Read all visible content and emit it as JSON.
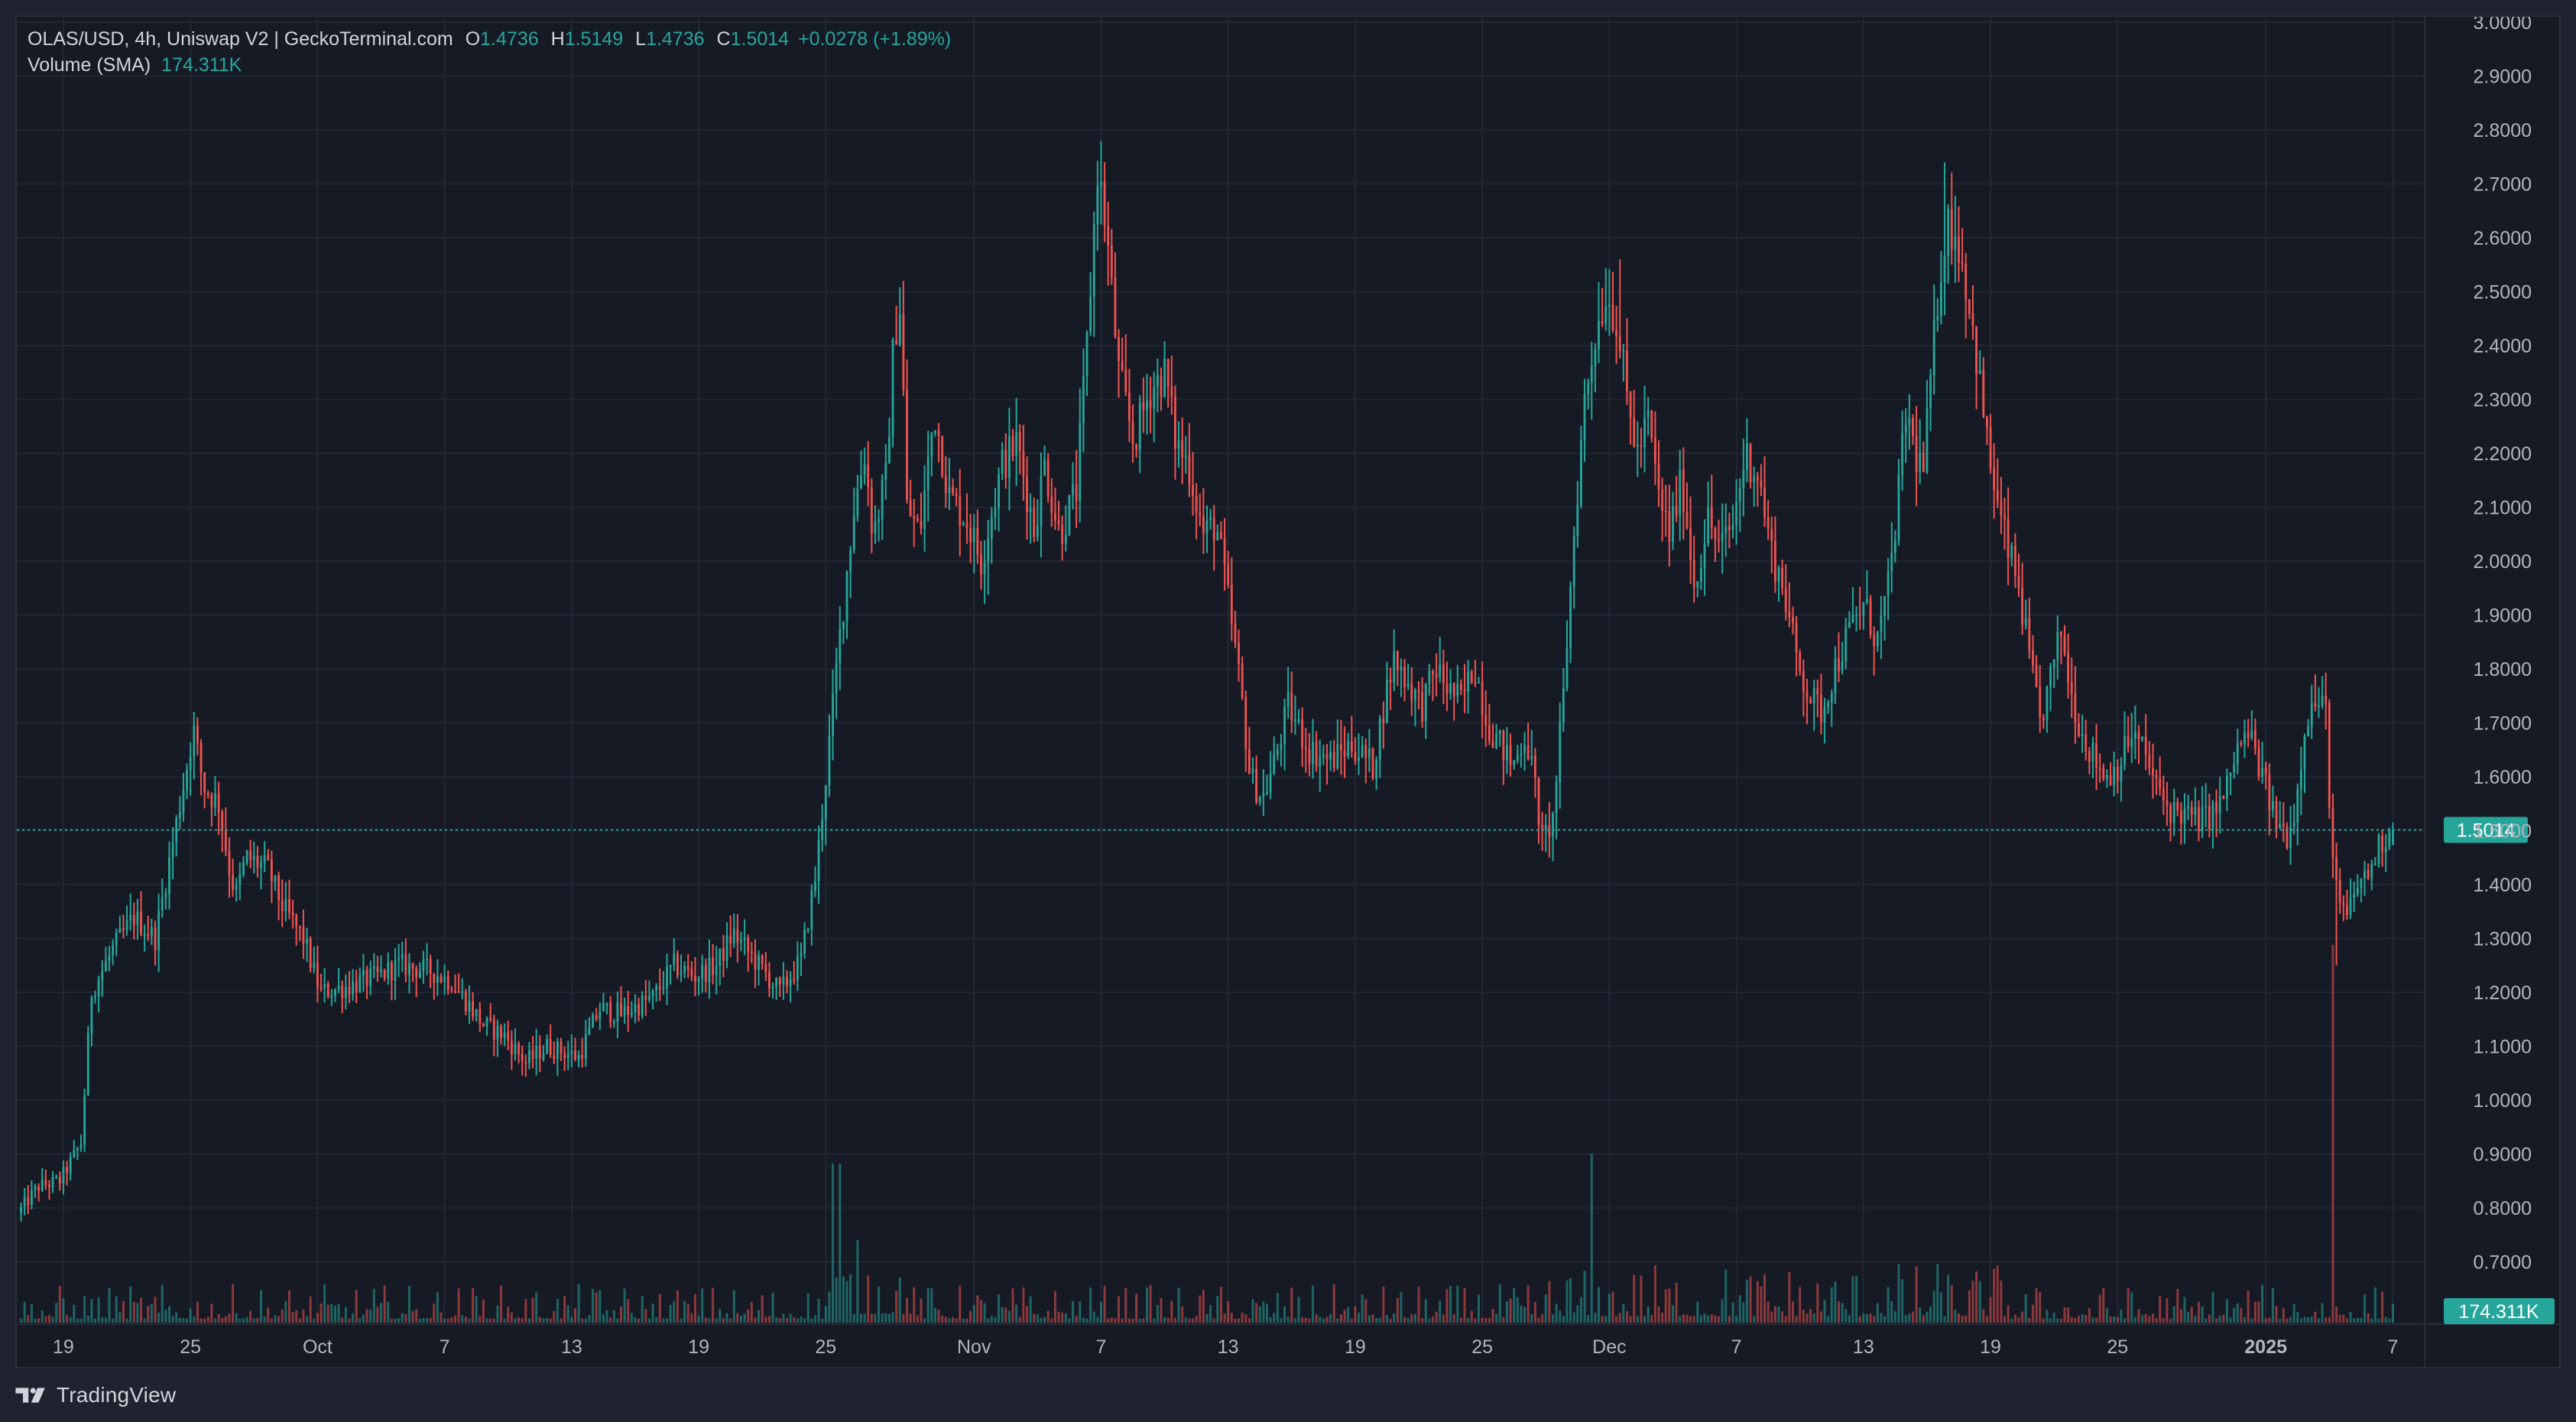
{
  "header": {
    "title": "OLAS/USD, 4h, Uniswap V2 | GeckoTerminal.com",
    "o_label": "O",
    "o_value": "1.4736",
    "h_label": "H",
    "h_value": "1.5149",
    "l_label": "L",
    "l_value": "1.4736",
    "c_label": "C",
    "c_value": "1.5014",
    "change": "+0.0278 (+1.89%)",
    "volume_label": "Volume (SMA)",
    "volume_value": "174.311K"
  },
  "footer": {
    "brand": "TradingView"
  },
  "colors": {
    "background": "#161a25",
    "grid": "#232734",
    "up": "#26a69a",
    "down": "#ef5350",
    "text": "#d1d4dc",
    "axis_text": "#b2b5be"
  },
  "chart_data": {
    "type": "candlestick",
    "symbol": "OLAS/USD",
    "interval": "4h",
    "title": "OLAS/USD, 4h, Uniswap V2 | GeckoTerminal.com",
    "y_ticks": [
      "3.0000",
      "2.9000",
      "2.8000",
      "2.7000",
      "2.6000",
      "2.5000",
      "2.4000",
      "2.3000",
      "2.2000",
      "2.1000",
      "2.0000",
      "1.9000",
      "1.8000",
      "1.7000",
      "1.6000",
      "1.5000",
      "1.4000",
      "1.3000",
      "1.2000",
      "1.1000",
      "1.0000",
      "0.9000",
      "0.8000",
      "0.7000"
    ],
    "ylim": [
      0.65,
      3.02
    ],
    "x_ticks": [
      {
        "label": "19",
        "day": 0,
        "bold": false
      },
      {
        "label": "25",
        "day": 6,
        "bold": false
      },
      {
        "label": "Oct",
        "day": 12,
        "bold": false
      },
      {
        "label": "7",
        "day": 18,
        "bold": false
      },
      {
        "label": "13",
        "day": 24,
        "bold": false
      },
      {
        "label": "19",
        "day": 30,
        "bold": false
      },
      {
        "label": "25",
        "day": 36,
        "bold": false
      },
      {
        "label": "Nov",
        "day": 43,
        "bold": false
      },
      {
        "label": "7",
        "day": 49,
        "bold": false
      },
      {
        "label": "13",
        "day": 55,
        "bold": false
      },
      {
        "label": "19",
        "day": 61,
        "bold": false
      },
      {
        "label": "25",
        "day": 67,
        "bold": false
      },
      {
        "label": "Dec",
        "day": 73,
        "bold": false
      },
      {
        "label": "7",
        "day": 79,
        "bold": false
      },
      {
        "label": "13",
        "day": 85,
        "bold": false
      },
      {
        "label": "19",
        "day": 91,
        "bold": false
      },
      {
        "label": "25",
        "day": 97,
        "bold": false
      },
      {
        "label": "2025",
        "day": 104,
        "bold": true
      },
      {
        "label": "7",
        "day": 110,
        "bold": false
      }
    ],
    "x_domain_days": [
      -2.2,
      111.5
    ],
    "last_price": "1.5014",
    "last_volume": "174.311K",
    "grid": true,
    "price_path_anchors": [
      {
        "day": -2.0,
        "price": 0.79
      },
      {
        "day": -1.0,
        "price": 0.84
      },
      {
        "day": 0.0,
        "price": 0.85
      },
      {
        "day": 1.0,
        "price": 0.92
      },
      {
        "day": 1.5,
        "price": 1.2
      },
      {
        "day": 2.5,
        "price": 1.28
      },
      {
        "day": 3.5,
        "price": 1.34
      },
      {
        "day": 4.5,
        "price": 1.3
      },
      {
        "day": 5.2,
        "price": 1.45
      },
      {
        "day": 6.0,
        "price": 1.62
      },
      {
        "day": 6.3,
        "price": 1.69
      },
      {
        "day": 6.8,
        "price": 1.58
      },
      {
        "day": 7.5,
        "price": 1.55
      },
      {
        "day": 8.0,
        "price": 1.43
      },
      {
        "day": 8.3,
        "price": 1.38
      },
      {
        "day": 8.8,
        "price": 1.45
      },
      {
        "day": 9.8,
        "price": 1.43
      },
      {
        "day": 10.5,
        "price": 1.36
      },
      {
        "day": 11.5,
        "price": 1.3
      },
      {
        "day": 12.3,
        "price": 1.2
      },
      {
        "day": 13.5,
        "price": 1.21
      },
      {
        "day": 15.0,
        "price": 1.23
      },
      {
        "day": 16.0,
        "price": 1.25
      },
      {
        "day": 17.5,
        "price": 1.24
      },
      {
        "day": 18.5,
        "price": 1.22
      },
      {
        "day": 20.0,
        "price": 1.14
      },
      {
        "day": 21.0,
        "price": 1.12
      },
      {
        "day": 22.0,
        "price": 1.07
      },
      {
        "day": 23.0,
        "price": 1.1
      },
      {
        "day": 24.5,
        "price": 1.08
      },
      {
        "day": 25.5,
        "price": 1.17
      },
      {
        "day": 26.5,
        "price": 1.16
      },
      {
        "day": 28.0,
        "price": 1.19
      },
      {
        "day": 29.0,
        "price": 1.25
      },
      {
        "day": 30.0,
        "price": 1.23
      },
      {
        "day": 31.0,
        "price": 1.25
      },
      {
        "day": 31.8,
        "price": 1.31
      },
      {
        "day": 33.0,
        "price": 1.25
      },
      {
        "day": 34.0,
        "price": 1.2
      },
      {
        "day": 35.0,
        "price": 1.26
      },
      {
        "day": 35.7,
        "price": 1.42
      },
      {
        "day": 36.3,
        "price": 1.65
      },
      {
        "day": 36.8,
        "price": 1.85
      },
      {
        "day": 37.5,
        "price": 2.1
      },
      {
        "day": 38.0,
        "price": 2.2
      },
      {
        "day": 38.4,
        "price": 2.05
      },
      {
        "day": 39.0,
        "price": 2.15
      },
      {
        "day": 39.4,
        "price": 2.42
      },
      {
        "day": 39.7,
        "price": 2.48
      },
      {
        "day": 40.0,
        "price": 2.1
      },
      {
        "day": 40.6,
        "price": 2.05
      },
      {
        "day": 41.3,
        "price": 2.28
      },
      {
        "day": 42.0,
        "price": 2.12
      },
      {
        "day": 42.8,
        "price": 2.08
      },
      {
        "day": 43.5,
        "price": 2.0
      },
      {
        "day": 44.5,
        "price": 2.18
      },
      {
        "day": 45.2,
        "price": 2.22
      },
      {
        "day": 46.0,
        "price": 2.06
      },
      {
        "day": 46.5,
        "price": 2.18
      },
      {
        "day": 47.2,
        "price": 2.05
      },
      {
        "day": 48.0,
        "price": 2.13
      },
      {
        "day": 48.5,
        "price": 2.4
      },
      {
        "day": 49.0,
        "price": 2.73
      },
      {
        "day": 49.4,
        "price": 2.62
      },
      {
        "day": 50.0,
        "price": 2.35
      },
      {
        "day": 50.7,
        "price": 2.22
      },
      {
        "day": 51.5,
        "price": 2.32
      },
      {
        "day": 52.2,
        "price": 2.35
      },
      {
        "day": 52.7,
        "price": 2.22
      },
      {
        "day": 53.3,
        "price": 2.18
      },
      {
        "day": 54.0,
        "price": 2.05
      },
      {
        "day": 54.6,
        "price": 2.07
      },
      {
        "day": 55.2,
        "price": 1.92
      },
      {
        "day": 55.8,
        "price": 1.75
      },
      {
        "day": 56.2,
        "price": 1.6
      },
      {
        "day": 56.8,
        "price": 1.56
      },
      {
        "day": 57.3,
        "price": 1.62
      },
      {
        "day": 58.0,
        "price": 1.73
      },
      {
        "day": 59.0,
        "price": 1.65
      },
      {
        "day": 60.0,
        "price": 1.63
      },
      {
        "day": 61.0,
        "price": 1.66
      },
      {
        "day": 62.0,
        "price": 1.62
      },
      {
        "day": 62.6,
        "price": 1.75
      },
      {
        "day": 63.0,
        "price": 1.82
      },
      {
        "day": 63.6,
        "price": 1.78
      },
      {
        "day": 64.3,
        "price": 1.73
      },
      {
        "day": 65.0,
        "price": 1.8
      },
      {
        "day": 65.6,
        "price": 1.76
      },
      {
        "day": 66.2,
        "price": 1.74
      },
      {
        "day": 66.8,
        "price": 1.81
      },
      {
        "day": 67.4,
        "price": 1.7
      },
      {
        "day": 68.0,
        "price": 1.66
      },
      {
        "day": 68.6,
        "price": 1.62
      },
      {
        "day": 69.2,
        "price": 1.68
      },
      {
        "day": 69.6,
        "price": 1.6
      },
      {
        "day": 70.0,
        "price": 1.48
      },
      {
        "day": 70.5,
        "price": 1.52
      },
      {
        "day": 71.0,
        "price": 1.75
      },
      {
        "day": 71.5,
        "price": 2.05
      },
      {
        "day": 72.0,
        "price": 2.3
      },
      {
        "day": 72.5,
        "price": 2.42
      },
      {
        "day": 73.0,
        "price": 2.5
      },
      {
        "day": 73.5,
        "price": 2.45
      },
      {
        "day": 74.0,
        "price": 2.3
      },
      {
        "day": 74.5,
        "price": 2.2
      },
      {
        "day": 75.0,
        "price": 2.26
      },
      {
        "day": 75.5,
        "price": 2.12
      },
      {
        "day": 76.0,
        "price": 2.05
      },
      {
        "day": 76.6,
        "price": 2.15
      },
      {
        "day": 77.2,
        "price": 1.95
      },
      {
        "day": 77.8,
        "price": 2.08
      },
      {
        "day": 78.4,
        "price": 2.02
      },
      {
        "day": 79.0,
        "price": 2.07
      },
      {
        "day": 79.6,
        "price": 2.2
      },
      {
        "day": 80.2,
        "price": 2.16
      },
      {
        "day": 80.8,
        "price": 2.02
      },
      {
        "day": 81.4,
        "price": 1.95
      },
      {
        "day": 82.0,
        "price": 1.82
      },
      {
        "day": 82.6,
        "price": 1.75
      },
      {
        "day": 83.2,
        "price": 1.72
      },
      {
        "day": 83.8,
        "price": 1.8
      },
      {
        "day": 84.6,
        "price": 1.88
      },
      {
        "day": 85.2,
        "price": 1.92
      },
      {
        "day": 85.8,
        "price": 1.85
      },
      {
        "day": 86.4,
        "price": 1.96
      },
      {
        "day": 86.8,
        "price": 2.12
      },
      {
        "day": 87.2,
        "price": 2.28
      },
      {
        "day": 87.6,
        "price": 2.2
      },
      {
        "day": 88.0,
        "price": 2.17
      },
      {
        "day": 88.4,
        "price": 2.36
      },
      {
        "day": 88.8,
        "price": 2.55
      },
      {
        "day": 89.2,
        "price": 2.63
      },
      {
        "day": 89.6,
        "price": 2.6
      },
      {
        "day": 90.0,
        "price": 2.52
      },
      {
        "day": 90.5,
        "price": 2.38
      },
      {
        "day": 91.0,
        "price": 2.22
      },
      {
        "day": 91.5,
        "price": 2.1
      },
      {
        "day": 92.0,
        "price": 2.02
      },
      {
        "day": 92.5,
        "price": 1.95
      },
      {
        "day": 93.0,
        "price": 1.82
      },
      {
        "day": 93.5,
        "price": 1.7
      },
      {
        "day": 94.0,
        "price": 1.78
      },
      {
        "day": 94.5,
        "price": 1.87
      },
      {
        "day": 95.0,
        "price": 1.75
      },
      {
        "day": 95.5,
        "price": 1.68
      },
      {
        "day": 96.0,
        "price": 1.64
      },
      {
        "day": 96.6,
        "price": 1.6
      },
      {
        "day": 97.2,
        "price": 1.62
      },
      {
        "day": 97.8,
        "price": 1.68
      },
      {
        "day": 98.4,
        "price": 1.65
      },
      {
        "day": 99.0,
        "price": 1.58
      },
      {
        "day": 99.6,
        "price": 1.54
      },
      {
        "day": 100.3,
        "price": 1.53
      },
      {
        "day": 101.0,
        "price": 1.52
      },
      {
        "day": 101.6,
        "price": 1.53
      },
      {
        "day": 102.2,
        "price": 1.56
      },
      {
        "day": 102.8,
        "price": 1.65
      },
      {
        "day": 103.4,
        "price": 1.68
      },
      {
        "day": 104.0,
        "price": 1.6
      },
      {
        "day": 104.6,
        "price": 1.52
      },
      {
        "day": 105.2,
        "price": 1.49
      },
      {
        "day": 105.6,
        "price": 1.55
      },
      {
        "day": 106.0,
        "price": 1.7
      },
      {
        "day": 106.5,
        "price": 1.74
      },
      {
        "day": 107.0,
        "price": 1.72
      },
      {
        "day": 107.3,
        "price": 1.45
      },
      {
        "day": 107.6,
        "price": 1.36
      },
      {
        "day": 108.0,
        "price": 1.34
      },
      {
        "day": 108.5,
        "price": 1.4
      },
      {
        "day": 109.0,
        "price": 1.42
      },
      {
        "day": 109.5,
        "price": 1.47
      },
      {
        "day": 110.0,
        "price": 1.5
      }
    ],
    "notable_wicks": [
      {
        "day": 49.0,
        "high": 2.76
      },
      {
        "day": 88.8,
        "high": 2.74
      },
      {
        "day": 73.5,
        "high": 2.56
      },
      {
        "day": 39.6,
        "high": 2.52
      },
      {
        "day": 107.4,
        "low": 1.25
      },
      {
        "day": 70.0,
        "low": 1.46
      },
      {
        "day": 106.3,
        "high": 1.79
      }
    ],
    "volume_spikes": [
      {
        "day": 36.3,
        "value": 0.16
      },
      {
        "day": 36.7,
        "value": 0.16
      },
      {
        "day": 72.2,
        "value": 0.17
      },
      {
        "day": 107.2,
        "value": 0.38
      }
    ]
  }
}
